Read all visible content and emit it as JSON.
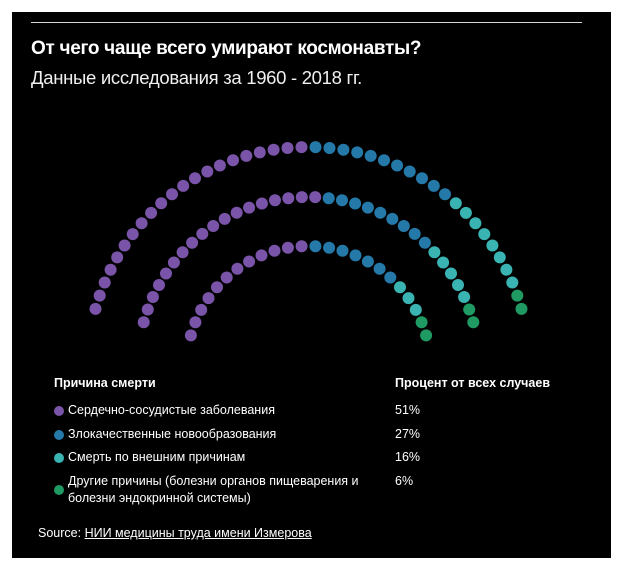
{
  "header": {
    "title": "От чего чаще всего умирают космонавты?",
    "subtitle": "Данные исследования за 1960 - 2018 гг."
  },
  "legend": {
    "col_cause": "Причина смерти",
    "col_percent": "Процент от всех случаев",
    "items": [
      {
        "label": "Сердечно-сосудистые заболевания",
        "value": "51%",
        "color": "#7a54a8"
      },
      {
        "label": "Злокачественные новообразования",
        "value": "27%",
        "color": "#2479a8"
      },
      {
        "label": "Смерть по внешним причинам",
        "value": "16%",
        "color": "#3ab3b3"
      },
      {
        "label": "Другие причины (болезни органов пищеварения и болезни эндокринной системы)",
        "value": "6%",
        "color": "#1f9a63"
      }
    ]
  },
  "source": {
    "prefix": "Source: ",
    "link": "НИИ медицины труда имени Измерова"
  },
  "chart_data": {
    "type": "pie",
    "subtype": "parliament-dot-arc",
    "title": "От чего чаще всего умирают космонавты?",
    "subtitle": "Данные исследования за 1960 - 2018 гг.",
    "categories": [
      "Сердечно-сосудистые заболевания",
      "Злокачественные новообразования",
      "Смерть по внешним причинам",
      "Другие причины (болезни органов пищеварения и болезни эндокринной системы)"
    ],
    "values": [
      51,
      27,
      16,
      6
    ],
    "unit": "%",
    "colors": [
      "#7a54a8",
      "#2479a8",
      "#3ab3b3",
      "#1f9a63"
    ],
    "total_dots": 100,
    "arcs": [
      {
        "name": "outer",
        "dots": 42,
        "counts": [
          21,
          11,
          8,
          2
        ]
      },
      {
        "name": "middle",
        "dots": 34,
        "counts": [
          18,
          9,
          5,
          2
        ]
      },
      {
        "name": "inner",
        "dots": 24,
        "counts": [
          12,
          7,
          3,
          2
        ]
      }
    ],
    "legend_position": "bottom",
    "source": "НИИ медицины труда имени Измерова"
  }
}
